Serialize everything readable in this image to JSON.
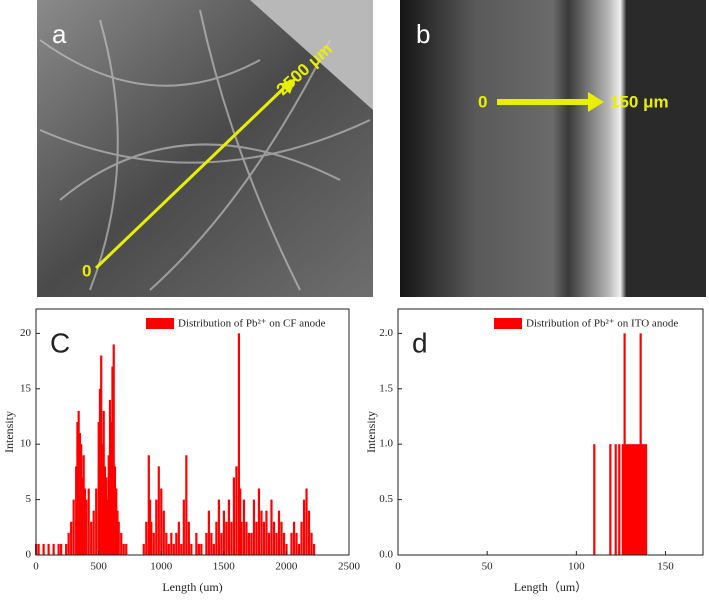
{
  "images": [
    {
      "label": "a",
      "start": "0",
      "end": "2500 μm"
    },
    {
      "label": "b",
      "start": "0",
      "end": "150 μm"
    }
  ],
  "chart_data": [
    {
      "type": "bar",
      "panel": "C",
      "legend": "Distribution of Pb²⁺ on CF anode",
      "color": "#ff0000",
      "xlabel": "Length (um)",
      "ylabel": "Intensity",
      "xlim": [
        0,
        2500
      ],
      "ylim": [
        0,
        22.2
      ],
      "xticks": [
        0,
        500,
        1000,
        1500,
        2000,
        2500
      ],
      "yticks": [
        0,
        5,
        10,
        15,
        20
      ],
      "x": [
        0,
        20,
        60,
        100,
        140,
        180,
        200,
        240,
        260,
        280,
        300,
        320,
        330,
        340,
        350,
        360,
        370,
        380,
        390,
        400,
        420,
        440,
        460,
        480,
        500,
        510,
        520,
        530,
        540,
        550,
        560,
        570,
        580,
        590,
        600,
        610,
        620,
        630,
        640,
        650,
        660,
        680,
        700,
        720,
        860,
        880,
        900,
        910,
        920,
        940,
        960,
        980,
        1000,
        1020,
        1040,
        1060,
        1080,
        1100,
        1120,
        1140,
        1160,
        1180,
        1200,
        1220,
        1240,
        1280,
        1300,
        1320,
        1360,
        1380,
        1400,
        1420,
        1440,
        1460,
        1480,
        1500,
        1520,
        1540,
        1560,
        1580,
        1600,
        1620,
        1630,
        1640,
        1660,
        1680,
        1700,
        1720,
        1740,
        1760,
        1780,
        1800,
        1820,
        1840,
        1860,
        1880,
        1900,
        1920,
        1940,
        1960,
        1980,
        2000,
        2040,
        2060,
        2080,
        2100,
        2120,
        2140,
        2160,
        2180,
        2200,
        2220
      ],
      "values": [
        1,
        1,
        1,
        1,
        1,
        1,
        1,
        1,
        2,
        3,
        5,
        8,
        12,
        13,
        11,
        10,
        7,
        9,
        6,
        5,
        6,
        3,
        4,
        6,
        12,
        15,
        18,
        10,
        13,
        8,
        7,
        5,
        9,
        14,
        12,
        17,
        19,
        8,
        6,
        4,
        3,
        2,
        1,
        1,
        1,
        3,
        9,
        5,
        3,
        2,
        5,
        8,
        6,
        4,
        2,
        1,
        2,
        1,
        2,
        3,
        1,
        5,
        9,
        3,
        1,
        2,
        1,
        1,
        2,
        4,
        2,
        1,
        3,
        5,
        2,
        4,
        3,
        5,
        3,
        7,
        8,
        20,
        6,
        3,
        5,
        3,
        2,
        2,
        5,
        3,
        6,
        4,
        3,
        4,
        2,
        5,
        3,
        2,
        4,
        3,
        2,
        1,
        2,
        3,
        2,
        1,
        3,
        5,
        6,
        4,
        2,
        1
      ]
    },
    {
      "type": "bar",
      "panel": "d",
      "legend": "Distribution of Pb²⁺ on ITO anode",
      "color": "#ff0000",
      "xlabel": "Length（um）",
      "ylabel": "Intensity",
      "xlim": [
        0,
        171
      ],
      "ylim": [
        0,
        2.22
      ],
      "xticks": [
        0,
        50,
        100,
        150
      ],
      "yticks": [
        {
          "value": 0,
          "label": "0.0"
        },
        {
          "value": 0.5,
          "label": "0.5"
        },
        {
          "value": 1,
          "label": "1.0"
        },
        {
          "value": 1.5,
          "label": "1.5"
        },
        {
          "value": 2,
          "label": "2.0"
        }
      ],
      "x": [
        110,
        119,
        122,
        124,
        126,
        127,
        128,
        129,
        130,
        131,
        132,
        133,
        134,
        135,
        136,
        137,
        138,
        139
      ],
      "values": [
        1,
        1,
        1,
        1,
        1,
        2,
        1,
        1,
        1,
        1,
        1,
        1,
        1,
        1,
        2,
        1,
        1,
        1
      ]
    }
  ]
}
